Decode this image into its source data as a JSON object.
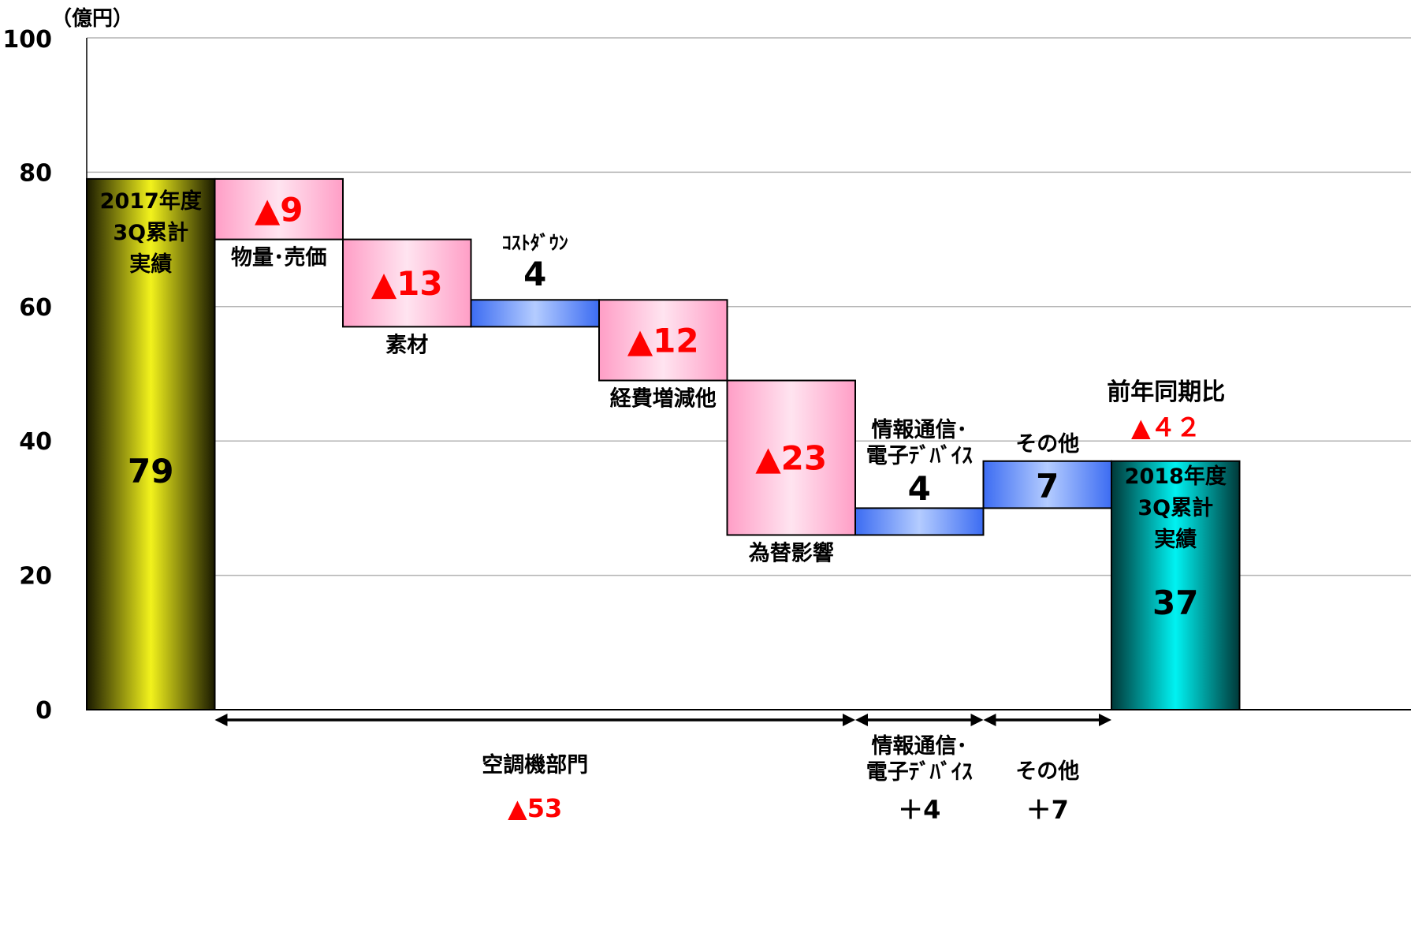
{
  "chart_data": {
    "type": "waterfall",
    "unit_label": "（億円）",
    "ylim": [
      0,
      100
    ],
    "yticks": [
      0,
      20,
      40,
      60,
      80,
      100
    ],
    "grid": true,
    "steps": [
      {
        "key": "start",
        "kind": "total",
        "value": 79,
        "label_lines": [
          "2017年度",
          "3Q累計",
          "実績"
        ],
        "value_label": "79"
      },
      {
        "key": "volume",
        "kind": "decrease",
        "value": -9,
        "label": "物量･売価",
        "value_label": "▲9"
      },
      {
        "key": "material",
        "kind": "decrease",
        "value": -13,
        "label": "素材",
        "value_label": "▲13"
      },
      {
        "key": "costdown",
        "kind": "increase",
        "value": 4,
        "label": "ｺｽﾄﾀﾞｳﾝ",
        "value_label": "4"
      },
      {
        "key": "expenses",
        "kind": "decrease",
        "value": -12,
        "label": "経費増減他",
        "value_label": "▲12"
      },
      {
        "key": "fx",
        "kind": "decrease",
        "value": -23,
        "label": "為替影響",
        "value_label": "▲23"
      },
      {
        "key": "infocomm",
        "kind": "increase",
        "value": 4,
        "label_lines": [
          "情報通信･",
          "電子ﾃﾞﾊﾞｲｽ"
        ],
        "value_label": "4"
      },
      {
        "key": "other",
        "kind": "increase",
        "value": 7,
        "label": "その他",
        "value_label": "7"
      },
      {
        "key": "end",
        "kind": "total",
        "value": 37,
        "label_lines": [
          "2018年度",
          "3Q累計",
          "実績"
        ],
        "value_label": "37"
      }
    ],
    "yoy": {
      "label": "前年同期比",
      "value": -42,
      "value_label": "▲４２"
    },
    "segments": [
      {
        "label_lines": [
          "空調機部門"
        ],
        "value": -53,
        "value_label": "▲53",
        "from_step": 1,
        "to_step": 5
      },
      {
        "label_lines": [
          "情報通信･",
          "電子ﾃﾞﾊﾞｲｽ"
        ],
        "value": 4,
        "value_label": "＋4",
        "from_step": 6,
        "to_step": 6
      },
      {
        "label_lines": [
          "その他"
        ],
        "value": 7,
        "value_label": "＋7",
        "from_step": 7,
        "to_step": 7
      }
    ],
    "colors": {
      "total_start": "#f0f020",
      "total_end": "#00f0f0",
      "decrease": "#ffb0d0",
      "increase": "#6e96ff",
      "negative_text": "#ff0000",
      "text": "#000000",
      "grid": "#b3b3b3"
    }
  }
}
